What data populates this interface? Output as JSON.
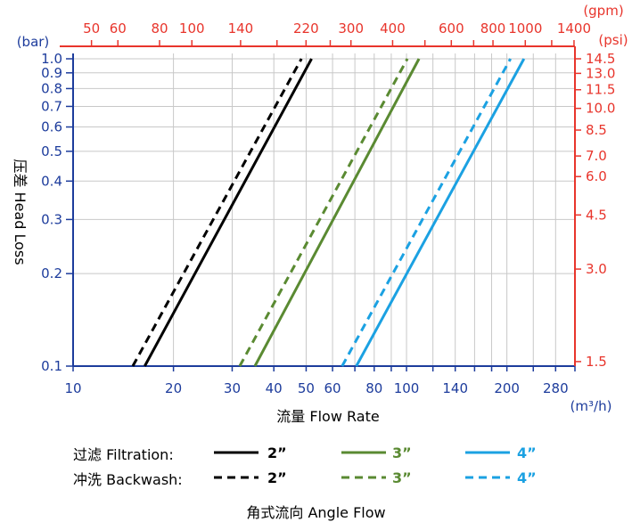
{
  "chart_data": {
    "type": "line",
    "title": "",
    "xlabel": "流量 Flow Rate",
    "xunit": "(m³/h)",
    "ylabel": "压差 Head Loss",
    "yunit": "(bar)",
    "x_scale": "log",
    "y_scale": "log",
    "xlim": [
      10,
      320
    ],
    "ylim": [
      0.1,
      1.0
    ],
    "grid": true,
    "x_ticks": [
      10,
      20,
      30,
      40,
      50,
      60,
      80,
      100,
      140,
      200,
      280
    ],
    "x_minor_ticks": [
      70,
      90,
      120,
      160,
      180,
      240,
      320
    ],
    "y_ticks": [
      "1.0",
      "0.9",
      "0.8",
      "0.7",
      "0.6",
      "0.5",
      "0.4",
      "0.3",
      "0.2",
      "0.1"
    ],
    "top_axis": {
      "unit": "(gpm)",
      "ticks": [
        50,
        60,
        80,
        100,
        140,
        220,
        300,
        400,
        600,
        800,
        1000,
        1400
      ],
      "minor_ticks": [
        180,
        260,
        500,
        700,
        1200
      ],
      "m3h_per_gpm": 0.2271
    },
    "right_axis": {
      "unit": "(psi)",
      "ticks": [
        "14.5",
        "13.0",
        "11.5",
        "10.0",
        "8.5",
        "7.0",
        "6.0",
        "4.5",
        "3.0",
        "1.5"
      ],
      "psi_per_bar": 14.5
    },
    "axis_colors": {
      "left_bottom": "#1d3c9c",
      "top_right": "#e8352c"
    },
    "series": [
      {
        "size": "2”",
        "mode": "Filtration",
        "color": "#000000",
        "dash": false,
        "x": [
          16.4,
          51.9
        ],
        "y": [
          0.1,
          1.0
        ]
      },
      {
        "size": "2”",
        "mode": "Backwash",
        "color": "#000000",
        "dash": true,
        "x": [
          15.1,
          48.4
        ],
        "y": [
          0.1,
          1.0
        ]
      },
      {
        "size": "3”",
        "mode": "Filtration",
        "color": "#5a8a32",
        "dash": false,
        "x": [
          35.1,
          109
        ],
        "y": [
          0.1,
          1.0
        ]
      },
      {
        "size": "3”",
        "mode": "Backwash",
        "color": "#5a8a32",
        "dash": true,
        "x": [
          31.6,
          100.6
        ],
        "y": [
          0.1,
          1.0
        ]
      },
      {
        "size": "4”",
        "mode": "Filtration",
        "color": "#1ba1e2",
        "dash": false,
        "x": [
          70.7,
          225
        ],
        "y": [
          0.1,
          1.0
        ]
      },
      {
        "size": "4”",
        "mode": "Backwash",
        "color": "#1ba1e2",
        "dash": true,
        "x": [
          64.1,
          205
        ],
        "y": [
          0.1,
          1.0
        ]
      }
    ]
  },
  "legend": {
    "filtration_label": "过滤 Filtration:",
    "backwash_label": "冲洗 Backwash:",
    "sizes": [
      "2”",
      "3”",
      "4”"
    ]
  },
  "footer": "角式流向 Angle Flow"
}
